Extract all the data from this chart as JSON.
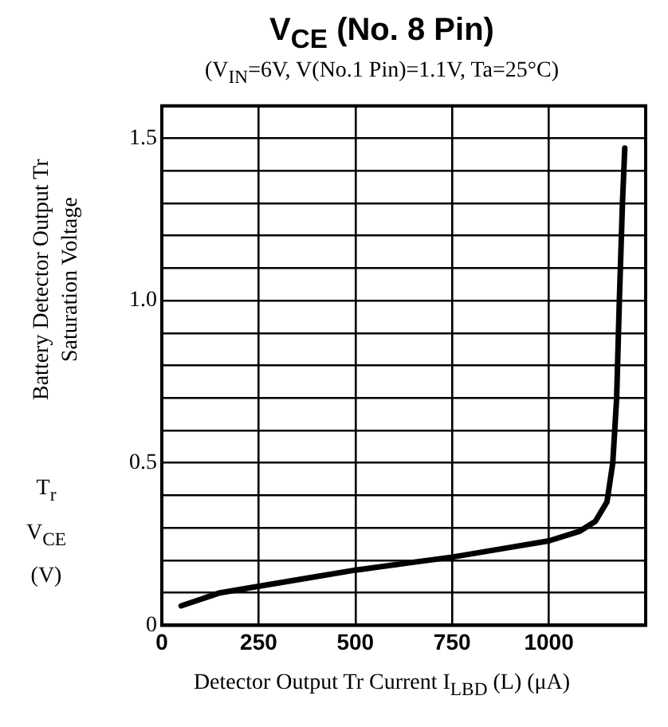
{
  "chart_data": {
    "type": "line",
    "title": "V$_{CE}$ (No. 8 Pin)",
    "subtitle": "(V$_{IN}$=6V, V(No.1 Pin)=1.1V, Ta=25°C)",
    "xlabel": "Detector Output Tr Current I$_{LBD}$ (L) (μA)",
    "ylabel": "Battery Detector Output Tr Saturation Voltage",
    "annotations": [
      "T$_{r}$ V$_{CE}$ (V)"
    ],
    "x": [
      50,
      150,
      250,
      400,
      500,
      750,
      900,
      1000,
      1080,
      1120,
      1150,
      1165,
      1175,
      1182,
      1190,
      1196
    ],
    "series": [
      {
        "color": "#000000",
        "values": [
          0.06,
          0.1,
          0.12,
          0.15,
          0.17,
          0.21,
          0.24,
          0.26,
          0.29,
          0.32,
          0.38,
          0.5,
          0.7,
          1.0,
          1.3,
          1.47
        ]
      }
    ],
    "xlim": [
      0,
      1250
    ],
    "xticks": [
      0,
      250,
      500,
      750,
      1000
    ],
    "ylim": [
      0,
      1.6
    ],
    "yticks": [
      0,
      {
        "value": 0.1,
        "label": null
      },
      {
        "value": 0.2,
        "label": null
      },
      {
        "value": 0.3,
        "label": null
      },
      {
        "value": 0.4,
        "label": null
      },
      0.5,
      {
        "value": 0.6,
        "label": null
      },
      {
        "value": 0.7,
        "label": null
      },
      {
        "value": 0.8,
        "label": null
      },
      {
        "value": 0.9,
        "label": null
      },
      {
        "value": 1.0,
        "label": "1.0"
      },
      {
        "value": 1.1,
        "label": null
      },
      {
        "value": 1.2,
        "label": null
      },
      {
        "value": 1.3,
        "label": null
      },
      {
        "value": 1.4,
        "label": null
      },
      1.5,
      {
        "value": 1.6,
        "label": null
      }
    ],
    "grid": true,
    "legend": false,
    "marker": "none",
    "line_style": "solid"
  }
}
